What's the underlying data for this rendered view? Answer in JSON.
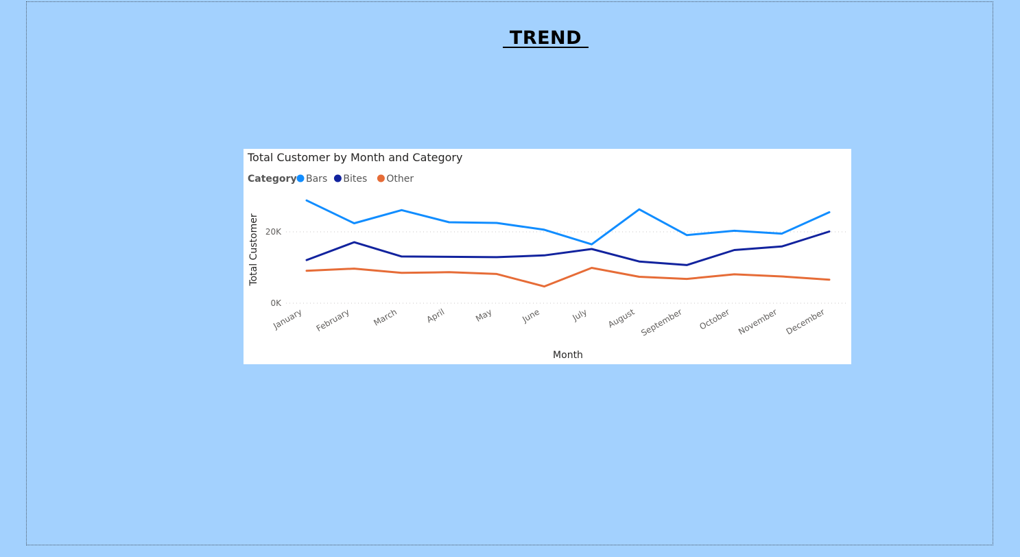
{
  "page": {
    "title": " TREND "
  },
  "chart_data": {
    "type": "line",
    "title": "Total Customer by Month and Category",
    "legend_title": "Category",
    "legend_position": "top-left",
    "xlabel": "Month",
    "ylabel": "Total Customer",
    "ylim": [
      0,
      30000
    ],
    "yticks": [
      0,
      20000
    ],
    "ytick_labels": [
      "0K",
      "20K"
    ],
    "grid": true,
    "categories": [
      "January",
      "February",
      "March",
      "April",
      "May",
      "June",
      "July",
      "August",
      "September",
      "October",
      "November",
      "December"
    ],
    "series": [
      {
        "name": "Bars",
        "color": "#118dff",
        "values": [
          28800,
          22400,
          26100,
          22700,
          22500,
          20600,
          16500,
          26300,
          19100,
          20300,
          19500,
          25500
        ]
      },
      {
        "name": "Bites",
        "color": "#12239e",
        "values": [
          12100,
          17100,
          13100,
          13000,
          12900,
          13400,
          15200,
          11700,
          10700,
          14900,
          15900,
          20100
        ]
      },
      {
        "name": "Other",
        "color": "#e66c37",
        "values": [
          9100,
          9700,
          8500,
          8700,
          8200,
          4700,
          9900,
          7400,
          6800,
          8100,
          7500,
          6600
        ]
      }
    ]
  }
}
